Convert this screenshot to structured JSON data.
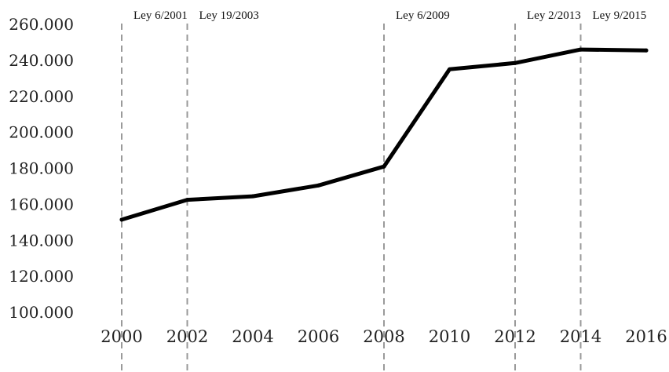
{
  "chart_data": {
    "type": "line",
    "title": "",
    "xlabel": "",
    "ylabel": "",
    "x_ticks": [
      "2000",
      "2002",
      "2004",
      "2006",
      "2008",
      "2010",
      "2012",
      "2014",
      "2016"
    ],
    "y_ticks": [
      "100.000",
      "120.000",
      "140.000",
      "160.000",
      "180.000",
      "200.000",
      "220.000",
      "240.000",
      "260.000"
    ],
    "xlim": [
      2000,
      2016
    ],
    "ylim": [
      100000,
      260000
    ],
    "grid": false,
    "legend": "none",
    "series": [
      {
        "points": [
          {
            "x": 2000,
            "y": 151500
          },
          {
            "x": 2002,
            "y": 162500
          },
          {
            "x": 2004,
            "y": 164500
          },
          {
            "x": 2006,
            "y": 170500
          },
          {
            "x": 2008,
            "y": 181000
          },
          {
            "x": 2010,
            "y": 235000
          },
          {
            "x": 2012,
            "y": 238500
          },
          {
            "x": 2014,
            "y": 246000
          },
          {
            "x": 2016,
            "y": 245500
          }
        ],
        "color": "#000000"
      }
    ],
    "annotations": [
      {
        "label": "Ley 6/2001",
        "x": 2000
      },
      {
        "label": "Ley 19/2003",
        "x": 2002
      },
      {
        "label": "Ley 6/2009",
        "x": 2008
      },
      {
        "label": "Ley 2/2013",
        "x": 2012
      },
      {
        "label": "Ley 9/2015",
        "x": 2014
      }
    ]
  }
}
